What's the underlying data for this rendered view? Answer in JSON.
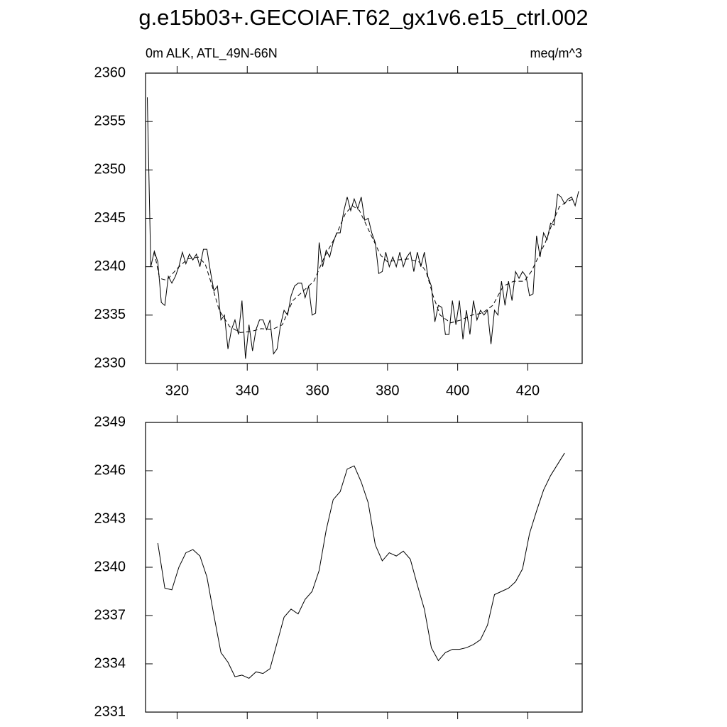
{
  "chart_data": [
    {
      "type": "line",
      "title": "g.e15b03+.GECOIAF.T62_gx1v6.e15_ctrl.002",
      "subtitle_left": "0m ALK, ATL_49N-66N",
      "subtitle_right": "meq/m^3",
      "xlim": [
        311,
        435.5
      ],
      "xticks": [
        320,
        340,
        360,
        380,
        400,
        420
      ],
      "ylim": [
        2330,
        2360
      ],
      "yticks": [
        2330,
        2335,
        2340,
        2345,
        2350,
        2355,
        2360
      ],
      "series": [
        {
          "color": "#000000",
          "dash": false,
          "x": [
            311.5,
            312.5,
            313.5,
            314.5,
            315.5,
            316.5,
            317.5,
            318.5,
            319.5,
            320.5,
            321.5,
            322.5,
            323.5,
            324.5,
            325.5,
            326.5,
            327.5,
            328.5,
            329.5,
            330.5,
            331.5,
            332.5,
            333.5,
            334.5,
            335.5,
            336.5,
            337.5,
            338.5,
            339.5,
            340.5,
            341.5,
            342.5,
            343.5,
            344.5,
            345.5,
            346.5,
            347.5,
            348.5,
            349.5,
            350.5,
            351.5,
            352.5,
            353.5,
            354.5,
            355.5,
            356.5,
            357.5,
            358.5,
            359.5,
            360.5,
            361.5,
            362.5,
            363.5,
            364.5,
            365.5,
            366.5,
            367.5,
            368.5,
            369.5,
            370.5,
            371.5,
            372.5,
            373.5,
            374.5,
            375.5,
            376.5,
            377.5,
            378.5,
            379.5,
            380.5,
            381.5,
            382.5,
            383.5,
            384.5,
            385.5,
            386.5,
            387.5,
            388.5,
            389.5,
            390.5,
            391.5,
            392.5,
            393.5,
            394.5,
            395.5,
            396.5,
            397.5,
            398.5,
            399.5,
            400.5,
            401.5,
            402.5,
            403.5,
            404.5,
            405.5,
            406.5,
            407.5,
            408.5,
            409.5,
            410.5,
            411.5,
            412.5,
            413.5,
            414.5,
            415.5,
            416.5,
            417.5,
            418.5,
            419.5,
            420.5,
            421.5,
            422.5,
            423.5,
            424.5,
            425.5,
            426.5,
            427.5,
            428.5,
            429.5,
            430.5,
            431.5,
            432.5,
            433.5,
            434.5
          ],
          "values": [
            2357.5,
            2340,
            2341.6,
            2340.5,
            2336.3,
            2336,
            2339,
            2338.3,
            2339,
            2340,
            2341.5,
            2340.3,
            2341.3,
            2340.7,
            2341.3,
            2340,
            2341.8,
            2341.8,
            2339.5,
            2337.5,
            2338,
            2334.5,
            2335,
            2331.5,
            2333.5,
            2334.5,
            2333,
            2336.5,
            2330.5,
            2334,
            2331.3,
            2333.5,
            2334.5,
            2334.5,
            2333.5,
            2334.5,
            2331,
            2331.5,
            2334,
            2335.5,
            2335,
            2337,
            2338,
            2338.3,
            2338.3,
            2336.8,
            2338,
            2335,
            2335.2,
            2342.5,
            2340,
            2341.7,
            2341,
            2342.5,
            2343.5,
            2343.5,
            2345.7,
            2347.2,
            2345.8,
            2347,
            2346,
            2347.2,
            2344.8,
            2345,
            2343.5,
            2342.5,
            2339.3,
            2339.5,
            2341.5,
            2340,
            2341,
            2340,
            2341.5,
            2340,
            2341,
            2341.5,
            2339.5,
            2341.5,
            2340,
            2341.5,
            2339,
            2338,
            2334.3,
            2336,
            2335.8,
            2333,
            2333,
            2336.5,
            2334,
            2336.5,
            2332.5,
            2335.5,
            2333,
            2336.5,
            2334.5,
            2335.5,
            2335,
            2335.5,
            2332,
            2335.5,
            2335,
            2338.5,
            2336,
            2338.5,
            2336.5,
            2339.5,
            2338.8,
            2339.5,
            2339,
            2337,
            2337.2,
            2343.2,
            2341,
            2343.5,
            2342.8,
            2344.5,
            2344.3,
            2347.5,
            2347.2,
            2346.5,
            2347,
            2347.2,
            2346.3,
            2347.8
          ]
        },
        {
          "color": "#000000",
          "dash": true,
          "x": [
            313.5,
            315,
            317,
            320,
            323,
            326,
            328,
            330,
            332,
            335,
            338,
            341,
            344,
            347,
            350,
            353,
            356,
            359,
            362,
            365,
            368,
            370,
            372,
            375,
            378,
            380,
            383,
            386,
            389,
            391,
            393,
            395,
            398,
            401,
            404,
            407,
            410,
            413,
            416,
            419,
            421,
            423,
            425,
            427,
            429,
            431,
            433
          ],
          "values": [
            2341.5,
            2338.8,
            2338.6,
            2339.8,
            2340.8,
            2341,
            2340.3,
            2338,
            2335.5,
            2333.8,
            2333.2,
            2333.3,
            2333.6,
            2333.5,
            2334,
            2336.5,
            2337.5,
            2338.5,
            2341,
            2343,
            2345.5,
            2346.3,
            2345.8,
            2343.5,
            2341.2,
            2340.5,
            2340.7,
            2340.8,
            2340.5,
            2339.5,
            2337,
            2335,
            2334.2,
            2334.5,
            2335,
            2335.2,
            2336,
            2338,
            2338.5,
            2338.5,
            2339.5,
            2341,
            2342.5,
            2344.5,
            2346.2,
            2346.7,
            2347
          ]
        }
      ]
    },
    {
      "type": "line",
      "xlim": [
        311,
        435.5
      ],
      "xticks": [
        320,
        340,
        360,
        380,
        400,
        420
      ],
      "ylim": [
        2331,
        2349
      ],
      "yticks": [
        2331,
        2334,
        2337,
        2340,
        2343,
        2346,
        2349
      ],
      "series": [
        {
          "color": "#000000",
          "dash": false,
          "x": [
            314.5,
            316.5,
            318.5,
            320.5,
            322.5,
            324.5,
            326.5,
            328.5,
            330.5,
            332.5,
            334.5,
            336.5,
            338.5,
            340.5,
            342.5,
            344.5,
            346.5,
            348.5,
            350.5,
            352.5,
            354.5,
            356.5,
            358.5,
            360.5,
            362.5,
            364.5,
            366.5,
            368.5,
            370.5,
            372.5,
            374.5,
            376.5,
            378.5,
            380.5,
            382.5,
            384.5,
            386.5,
            388.5,
            390.5,
            392.5,
            394.5,
            396.5,
            398.5,
            400.5,
            402.5,
            404.5,
            406.5,
            408.5,
            410.5,
            412.5,
            414.5,
            416.5,
            418.5,
            420.5,
            422.5,
            424.5,
            426.5,
            428.5,
            430.5
          ],
          "values": [
            2341.5,
            2338.7,
            2338.6,
            2340,
            2340.9,
            2341.1,
            2340.7,
            2339.4,
            2337,
            2334.7,
            2334.1,
            2333.2,
            2333.3,
            2333.1,
            2333.5,
            2333.4,
            2333.7,
            2335.3,
            2336.9,
            2337.4,
            2337.1,
            2338,
            2338.5,
            2339.8,
            2342.3,
            2344.2,
            2344.7,
            2346.1,
            2346.3,
            2345.3,
            2344,
            2341.4,
            2340.4,
            2340.9,
            2340.7,
            2341,
            2340.5,
            2338.9,
            2337.4,
            2335,
            2334.2,
            2334.7,
            2334.9,
            2334.9,
            2335,
            2335.2,
            2335.5,
            2336.4,
            2338.3,
            2338.5,
            2338.7,
            2339.1,
            2339.9,
            2342.1,
            2343.5,
            2344.8,
            2345.7,
            2346.4,
            2347.1
          ]
        }
      ]
    }
  ]
}
